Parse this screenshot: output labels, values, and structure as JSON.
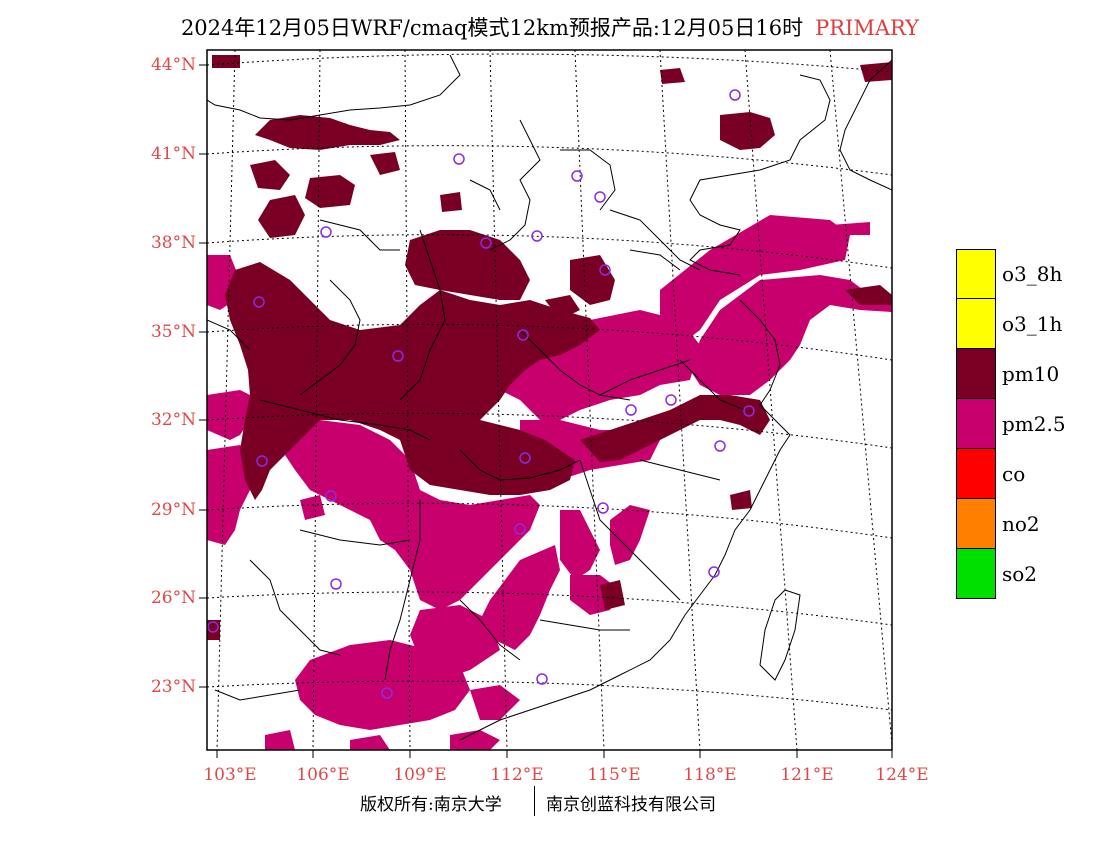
{
  "title": {
    "main": "2024年12月05日WRF/cmaq模式12km预报产品:12月05日16时",
    "tag": "PRIMARY",
    "tag_color": "#e03c3c"
  },
  "map": {
    "lat_labels": [
      "44°N",
      "41°N",
      "38°N",
      "35°N",
      "32°N",
      "29°N",
      "26°N",
      "23°N"
    ],
    "lon_labels": [
      "103°E",
      "106°E",
      "109°E",
      "112°E",
      "115°E",
      "118°E",
      "121°E",
      "124°E"
    ],
    "label_color": "#e04848",
    "pm10_color": "#790024",
    "pm25_color": "#c8006e",
    "station_marker_color": "#8a2be2"
  },
  "legend": [
    {
      "label": "o3_8h",
      "color": "#ffff00"
    },
    {
      "label": "o3_1h",
      "color": "#ffff00"
    },
    {
      "label": "pm10",
      "color": "#790024"
    },
    {
      "label": "pm2.5",
      "color": "#c8006e"
    },
    {
      "label": "co",
      "color": "#ff0000"
    },
    {
      "label": "no2",
      "color": "#ff8000"
    },
    {
      "label": "so2",
      "color": "#00e000"
    }
  ],
  "footer": {
    "left": "版权所有:南京大学",
    "right": "南京创蓝科技有限公司"
  }
}
